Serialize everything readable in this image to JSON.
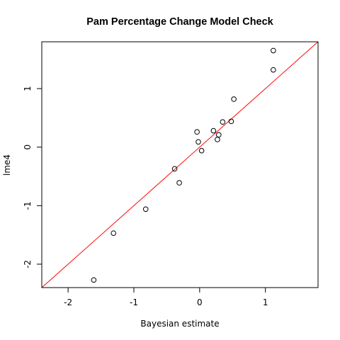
{
  "chart_data": {
    "type": "scatter",
    "title": "Pam Percentage Change Model Check",
    "xlabel": "Bayesian estimate",
    "ylabel": "lme4",
    "xlim": [
      -2.4,
      1.8
    ],
    "ylim": [
      -2.4,
      1.8
    ],
    "x_ticks": [
      -2,
      -1,
      0,
      1
    ],
    "y_ticks": [
      -2,
      -1,
      0,
      1
    ],
    "grid": false,
    "legend": "none",
    "points": [
      {
        "x": 1.12,
        "y": 1.65
      },
      {
        "x": 1.12,
        "y": 1.32
      },
      {
        "x": 0.52,
        "y": 0.82
      },
      {
        "x": 0.48,
        "y": 0.44
      },
      {
        "x": 0.35,
        "y": 0.43
      },
      {
        "x": 0.21,
        "y": 0.28
      },
      {
        "x": 0.29,
        "y": 0.21
      },
      {
        "x": 0.27,
        "y": 0.13
      },
      {
        "x": -0.04,
        "y": 0.26
      },
      {
        "x": -0.02,
        "y": 0.09
      },
      {
        "x": 0.03,
        "y": -0.06
      },
      {
        "x": -0.38,
        "y": -0.37
      },
      {
        "x": -0.31,
        "y": -0.61
      },
      {
        "x": -0.82,
        "y": -1.06
      },
      {
        "x": -1.31,
        "y": -1.47
      },
      {
        "x": -1.61,
        "y": -2.27
      }
    ],
    "reference_line": {
      "intercept": 0,
      "slope": 1,
      "color": "#ff0000"
    },
    "point_color": "#000000"
  }
}
